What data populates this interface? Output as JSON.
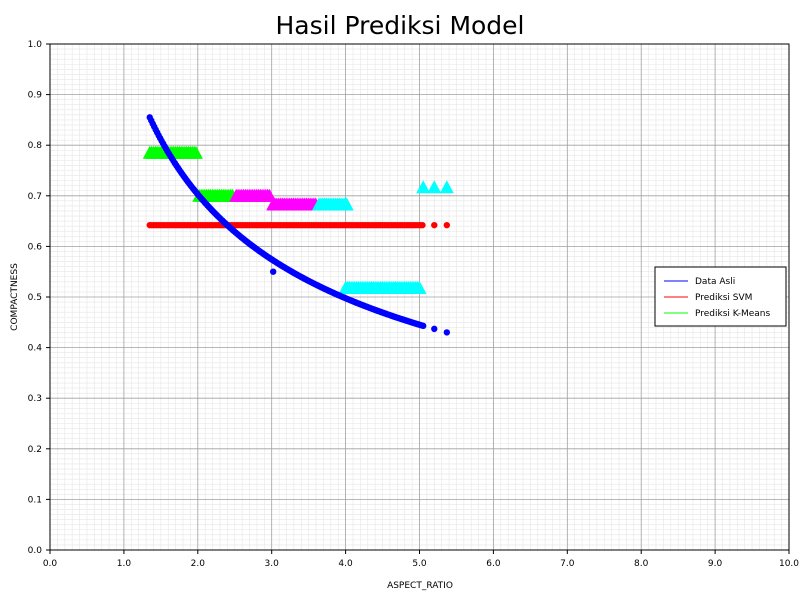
{
  "chart_data": {
    "type": "scatter",
    "title": "Hasil Prediksi Model",
    "xlabel": "ASPECT_RATIO",
    "ylabel": "COMPACTNESS",
    "xlim": [
      0.0,
      10.0
    ],
    "ylim": [
      0.0,
      1.0
    ],
    "x_ticks": [
      "0.0",
      "1.0",
      "2.0",
      "3.0",
      "4.0",
      "5.0",
      "6.0",
      "7.0",
      "8.0",
      "9.0",
      "10.0"
    ],
    "y_ticks": [
      "0.0",
      "0.1",
      "0.2",
      "0.3",
      "0.4",
      "0.5",
      "0.6",
      "0.7",
      "0.8",
      "0.9",
      "1.0"
    ],
    "grid": "major and minor",
    "legend_position": "right",
    "legend": [
      {
        "label": "Data Asli",
        "color": "#0000ff"
      },
      {
        "label": "Prediksi SVM",
        "color": "#ff0000"
      },
      {
        "label": "Prediksi K-Means",
        "color": "#00ff00"
      }
    ],
    "series": [
      {
        "name": "Data Asli",
        "marker": "circle",
        "color": "#0000ff",
        "curve": {
          "x_start": 1.35,
          "x_end": 5.05,
          "y_at_start": 0.855,
          "y_at_end": 0.443,
          "step": 0.02
        },
        "extra_points": [
          [
            5.2,
            0.437
          ],
          [
            5.37,
            0.43
          ],
          [
            3.02,
            0.55
          ]
        ]
      },
      {
        "name": "Prediksi SVM",
        "marker": "circle",
        "color": "#ff0000",
        "line": {
          "x_start": 1.35,
          "x_end": 5.05,
          "y": 0.642,
          "step": 0.03
        },
        "extra_points": [
          [
            5.2,
            0.642
          ],
          [
            5.37,
            0.642
          ]
        ]
      },
      {
        "name": "Prediksi K-Means",
        "marker": "triangle",
        "clusters": [
          {
            "color": "#00ff00",
            "x_start": 1.35,
            "x_end": 1.98,
            "y": 0.785
          },
          {
            "color": "#00ff00",
            "x_start": 2.02,
            "x_end": 2.48,
            "y": 0.7
          },
          {
            "color": "#ff00ff",
            "x_start": 2.52,
            "x_end": 2.98,
            "y": 0.7
          },
          {
            "color": "#ff00ff",
            "x_start": 3.02,
            "x_end": 3.6,
            "y": 0.683
          },
          {
            "color": "#00ffff",
            "x_start": 3.64,
            "x_end": 4.02,
            "y": 0.683
          },
          {
            "color": "#00ffff",
            "x_start": 4.0,
            "x_end": 5.0,
            "y": 0.518
          }
        ],
        "extra_points": [
          {
            "color": "#00ffff",
            "x": 5.05,
            "y": 0.717
          },
          {
            "color": "#00ffff",
            "x": 5.2,
            "y": 0.717
          },
          {
            "color": "#00ffff",
            "x": 5.37,
            "y": 0.717
          }
        ]
      }
    ]
  }
}
